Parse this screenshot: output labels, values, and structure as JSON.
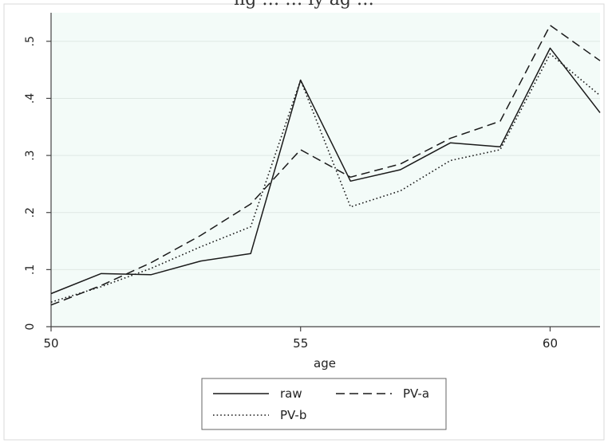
{
  "header": {
    "partial_title": "ng …  … ly ag …"
  },
  "chart_data": {
    "type": "line",
    "xlabel": "age",
    "ylabel": "",
    "xlim": [
      50,
      61
    ],
    "ylim": [
      0,
      0.55
    ],
    "x_ticks": [
      50,
      55,
      60
    ],
    "x_tick_labels": [
      "50",
      "55",
      "60"
    ],
    "y_ticks": [
      0,
      0.1,
      0.2,
      0.3,
      0.4,
      0.5
    ],
    "y_tick_labels": [
      "0",
      ".1",
      ".2",
      ".3",
      ".4",
      ".5"
    ],
    "grid": true,
    "legend_position": "bottom",
    "x": [
      50,
      51,
      52,
      53,
      54,
      55,
      56,
      57,
      58,
      59,
      60,
      61
    ],
    "series": [
      {
        "name": "raw",
        "style": "solid",
        "values": [
          0.058,
          0.093,
          0.091,
          0.115,
          0.128,
          0.432,
          0.255,
          0.275,
          0.322,
          0.315,
          0.488,
          0.375
        ]
      },
      {
        "name": "PV-a",
        "style": "dashed",
        "values": [
          0.038,
          0.072,
          0.112,
          0.16,
          0.215,
          0.31,
          0.262,
          0.285,
          0.33,
          0.36,
          0.528,
          0.466
        ]
      },
      {
        "name": "PV-b",
        "style": "dotted",
        "values": [
          0.043,
          0.07,
          0.102,
          0.14,
          0.175,
          0.432,
          0.21,
          0.238,
          0.291,
          0.31,
          0.478,
          0.405
        ]
      }
    ],
    "colors": {
      "plot_background": "#f3fbf8",
      "grid": "#dfe8e4",
      "line": "#1a1a1a",
      "axis": "#444444"
    }
  }
}
